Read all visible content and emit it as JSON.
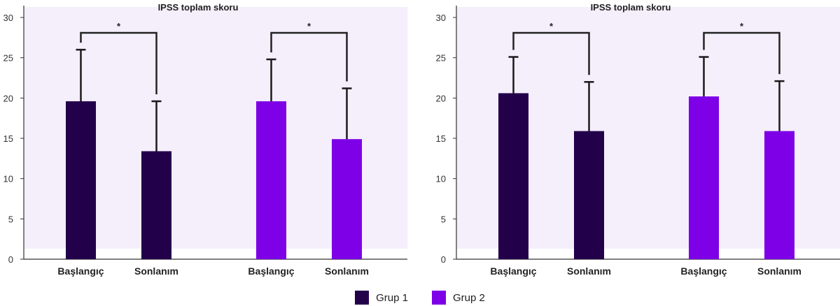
{
  "colors": {
    "plot_background": "#f5eefb",
    "grup1": "#22004a",
    "grup2": "#7d00e6",
    "axis": "#333333",
    "bracket": "#222222"
  },
  "legend": {
    "items": [
      {
        "label": "Grup 1",
        "color": "#22004a"
      },
      {
        "label": "Grup 2",
        "color": "#7d00e6"
      }
    ]
  },
  "chart_data": [
    {
      "type": "bar",
      "title": "IPSS toplam skoru",
      "xlabel": "",
      "ylabel": "",
      "ylim": [
        0,
        30
      ],
      "yticks": [
        0,
        5,
        10,
        15,
        20,
        25,
        30
      ],
      "grid": false,
      "legend_position": "bottom-center",
      "bars": [
        {
          "category": "Başlangıç",
          "series": "Grup 1",
          "value": 19.6,
          "error_upper": 26.0
        },
        {
          "category": "Sonlanım",
          "series": "Grup 1",
          "value": 13.4,
          "error_upper": 19.6
        },
        {
          "category": "Başlangıç",
          "series": "Grup 2",
          "value": 19.6,
          "error_upper": 24.8
        },
        {
          "category": "Sonlanım",
          "series": "Grup 2",
          "value": 14.9,
          "error_upper": 21.2
        }
      ],
      "significance": [
        {
          "series": "Grup 1",
          "label": "*"
        },
        {
          "series": "Grup 2",
          "label": "*"
        }
      ]
    },
    {
      "type": "bar",
      "title": "IPSS toplam skoru",
      "xlabel": "",
      "ylabel": "",
      "ylim": [
        0,
        30
      ],
      "yticks": [
        0,
        5,
        10,
        15,
        20,
        25,
        30
      ],
      "grid": false,
      "legend_position": "bottom-center",
      "bars": [
        {
          "category": "Başlangıç",
          "series": "Grup 1",
          "value": 20.6,
          "error_upper": 25.1
        },
        {
          "category": "Sonlanım",
          "series": "Grup 1",
          "value": 15.9,
          "error_upper": 22.0
        },
        {
          "category": "Başlangıç",
          "series": "Grup 2",
          "value": 20.2,
          "error_upper": 25.1
        },
        {
          "category": "Sonlanım",
          "series": "Grup 2",
          "value": 15.9,
          "error_upper": 22.1
        }
      ],
      "significance": [
        {
          "series": "Grup 1",
          "label": "*"
        },
        {
          "series": "Grup 2",
          "label": "*"
        }
      ]
    }
  ]
}
